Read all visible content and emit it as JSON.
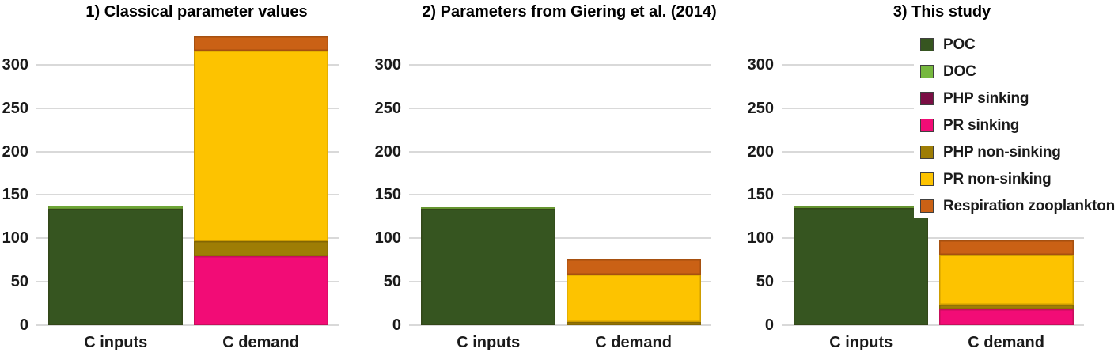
{
  "figure": {
    "kind": "three-panel stacked bar figure",
    "background": "#ffffff"
  },
  "colors": {
    "series": {
      "POC": "#365520",
      "DOC": "#76b83e",
      "PHP sinking": "#7a0e44",
      "PR sinking": "#f20c76",
      "PHP non-sinking": "#9e7d05",
      "PR non-sinking": "#fdc300",
      "Respiration zooplankton": "#ca6115"
    },
    "gridline": "#d9d9d9",
    "axis_text": "#1a1a1a",
    "title_text": "#000000",
    "legend_border": "#404040"
  },
  "legend": {
    "position": "right",
    "items": [
      {
        "label": "POC",
        "color": "#365520"
      },
      {
        "label": "DOC",
        "color": "#76b83e"
      },
      {
        "label": "PHP sinking",
        "color": "#7a0e44"
      },
      {
        "label": "PR sinking",
        "color": "#f20c76"
      },
      {
        "label": "PHP non-sinking",
        "color": "#9e7d05"
      },
      {
        "label": "PR non-sinking",
        "color": "#fdc300"
      },
      {
        "label": "Respiration zooplankton",
        "color": "#ca6115"
      }
    ]
  },
  "chart_data": [
    {
      "type": "bar",
      "stacked": true,
      "title": "1) Classical parameter values",
      "categories": [
        "C inputs",
        "C demand"
      ],
      "series": [
        {
          "name": "POC",
          "values": [
            134,
            0
          ]
        },
        {
          "name": "DOC",
          "values": [
            4,
            0
          ]
        },
        {
          "name": "PHP sinking",
          "values": [
            0,
            0
          ]
        },
        {
          "name": "PR sinking",
          "values": [
            0,
            79
          ]
        },
        {
          "name": "PHP non-sinking",
          "values": [
            0,
            18
          ]
        },
        {
          "name": "PR non-sinking",
          "values": [
            0,
            219
          ]
        },
        {
          "name": "Respiration zooplankton",
          "values": [
            0,
            17
          ]
        }
      ],
      "yticks": [
        0,
        50,
        100,
        150,
        200,
        250,
        300
      ],
      "ylim": [
        0,
        340
      ],
      "grid": true
    },
    {
      "type": "bar",
      "stacked": true,
      "title": "2) Parameters from Giering et al. (2014)",
      "categories": [
        "C inputs",
        "C demand"
      ],
      "series": [
        {
          "name": "POC",
          "values": [
            134,
            0
          ]
        },
        {
          "name": "DOC",
          "values": [
            2,
            0
          ]
        },
        {
          "name": "PHP sinking",
          "values": [
            0,
            0
          ]
        },
        {
          "name": "PR sinking",
          "values": [
            0,
            0
          ]
        },
        {
          "name": "PHP non-sinking",
          "values": [
            0,
            4
          ]
        },
        {
          "name": "PR non-sinking",
          "values": [
            0,
            54
          ]
        },
        {
          "name": "Respiration zooplankton",
          "values": [
            0,
            18
          ]
        }
      ],
      "yticks": [
        0,
        50,
        100,
        150,
        200,
        250,
        300
      ],
      "ylim": [
        0,
        340
      ],
      "grid": true
    },
    {
      "type": "bar",
      "stacked": true,
      "title": "3) This study",
      "categories": [
        "C inputs",
        "C demand"
      ],
      "series": [
        {
          "name": "POC",
          "values": [
            135,
            0
          ]
        },
        {
          "name": "DOC",
          "values": [
            2,
            0
          ]
        },
        {
          "name": "PHP sinking",
          "values": [
            0,
            0
          ]
        },
        {
          "name": "PR sinking",
          "values": [
            0,
            18
          ]
        },
        {
          "name": "PHP non-sinking",
          "values": [
            0,
            6
          ]
        },
        {
          "name": "PR non-sinking",
          "values": [
            0,
            57
          ]
        },
        {
          "name": "Respiration zooplankton",
          "values": [
            0,
            17
          ]
        }
      ],
      "yticks": [
        0,
        50,
        100,
        150,
        200,
        250,
        300
      ],
      "ylim": [
        0,
        340
      ],
      "grid": true
    }
  ]
}
